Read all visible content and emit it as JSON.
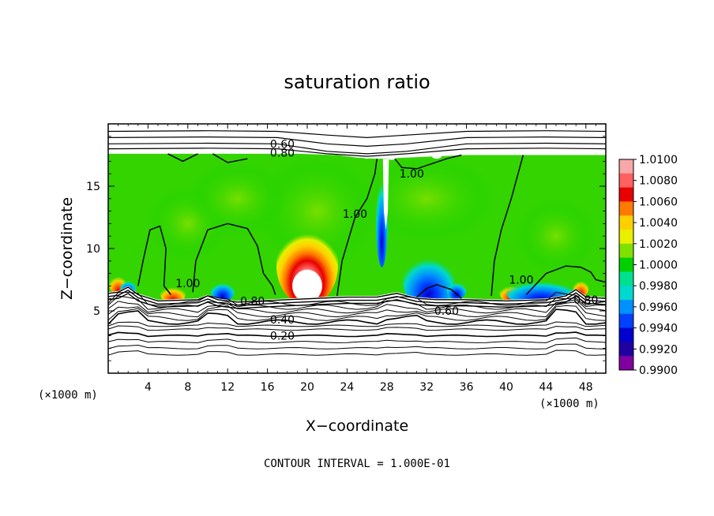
{
  "chart_data": {
    "type": "heatmap",
    "title": "saturation ratio",
    "xlabel": "X−coordinate",
    "ylabel": "Z−coordinate",
    "x_unit": "(×1000 m)",
    "y_unit": "(×1000 m)",
    "xlim": [
      0,
      50
    ],
    "ylim": [
      0,
      20
    ],
    "x_ticks": [
      4,
      8,
      12,
      16,
      20,
      24,
      28,
      32,
      36,
      40,
      44,
      48
    ],
    "y_ticks": [
      5,
      10,
      15
    ],
    "contour_interval_text": "CONTOUR INTERVAL = 1.000E-01",
    "colorbar": {
      "levels": [
        "1.0100",
        "1.0080",
        "1.0060",
        "1.0040",
        "1.0020",
        "1.0000",
        "0.9980",
        "0.9960",
        "0.9940",
        "0.9920",
        "0.9900"
      ],
      "colors": [
        "#f7a7a7",
        "#ff6060",
        "#e80000",
        "#ff7a00",
        "#ffd000",
        "#e8f000",
        "#80e000",
        "#00d000",
        "#00e090",
        "#00d8d0",
        "#0090ff",
        "#0040ff",
        "#0000d0",
        "#2000a0",
        "#8000a0"
      ]
    },
    "contour_labels": [
      {
        "text": "0.60",
        "x": 17.5,
        "z": 18.4
      },
      {
        "text": "0.80",
        "x": 17.5,
        "z": 17.7
      },
      {
        "text": "1.00",
        "x": 30.5,
        "z": 16.0
      },
      {
        "text": "1.00",
        "x": 24.8,
        "z": 12.8
      },
      {
        "text": "1.00",
        "x": 8.0,
        "z": 7.2
      },
      {
        "text": "1.00",
        "x": 41.5,
        "z": 7.5
      },
      {
        "text": "0.80",
        "x": 14.5,
        "z": 5.8
      },
      {
        "text": "0.60",
        "x": 34.0,
        "z": 5.0
      },
      {
        "text": "0.80",
        "x": 48.0,
        "z": 5.9
      },
      {
        "text": "0.40",
        "x": 17.5,
        "z": 4.3
      },
      {
        "text": "0.20",
        "x": 17.5,
        "z": 3.0
      }
    ],
    "field_regions": [
      {
        "desc": "moist layer background",
        "value": 1.0
      },
      {
        "desc": "supersaturation maximum",
        "x": 20,
        "z": 8,
        "value": 1.01
      },
      {
        "desc": "subsaturation minimum",
        "x": 32,
        "z": 7,
        "value": 0.994
      },
      {
        "desc": "subsaturation minimum",
        "x": 44,
        "z": 6.6,
        "value": 0.992
      }
    ],
    "grid": false
  }
}
